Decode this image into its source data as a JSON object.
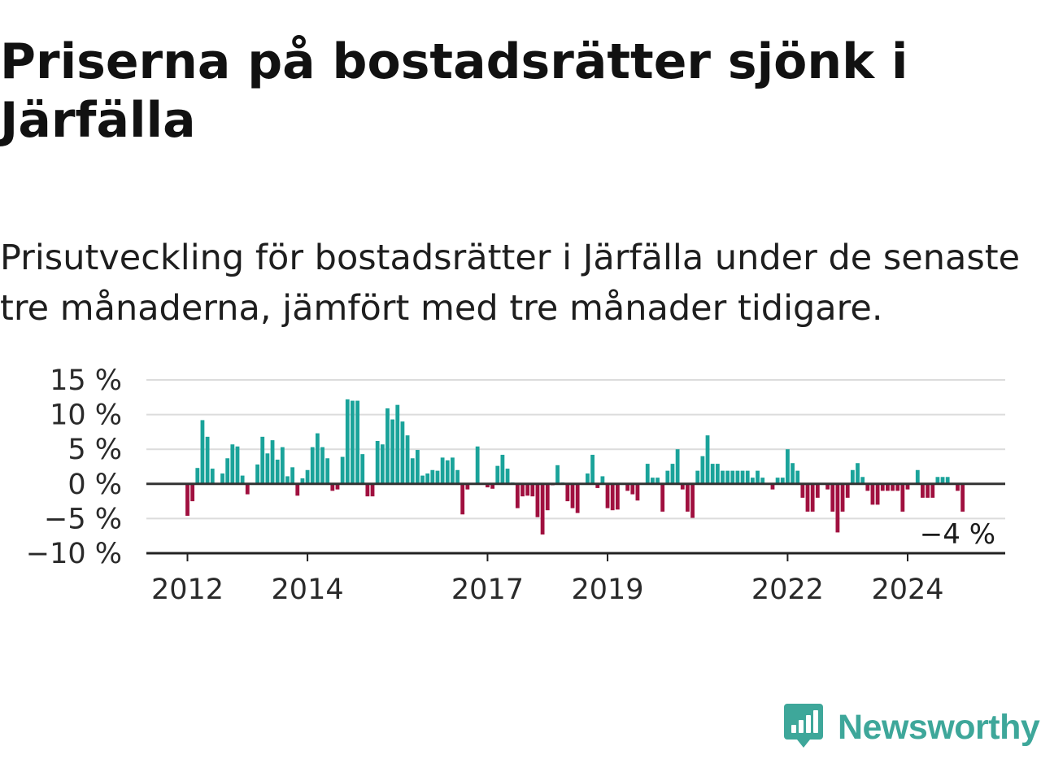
{
  "title": "Priserna på bostadsrätter sjönk i Järfälla",
  "subtitle": "Prisutveckling för bostadsrätter i Järfälla under de senaste tre månaderna, jämfört med tre månader tidigare.",
  "brand": {
    "name": "Newsworthy",
    "icon": "newsworthy-logo-icon",
    "color": "#3ea79a"
  },
  "colors": {
    "positive": "#1aa39a",
    "negative": "#a0103f",
    "grid": "#dcdcdc",
    "zero_line": "#333333"
  },
  "chart_data": {
    "type": "bar",
    "title": "Priserna på bostadsrätter sjönk i Järfälla",
    "xlabel": "",
    "ylabel": "",
    "ylim": [
      -10,
      15
    ],
    "y_ticks": [
      "15 %",
      "10 %",
      "5 %",
      "0 %",
      "−5 %",
      "−10 %"
    ],
    "y_tick_values": [
      15,
      10,
      5,
      0,
      -5,
      -10
    ],
    "x_ticks": [
      "2012",
      "2014",
      "2017",
      "2019",
      "2022",
      "2024"
    ],
    "grid": true,
    "start": "2012-01",
    "end_label": "−4 %",
    "series": [
      {
        "values": [
          -4.6,
          -2.5,
          2.3,
          9.2,
          6.8,
          2.2,
          0,
          1.5,
          3.7,
          5.7,
          5.4,
          1.2,
          -1.5,
          0,
          2.8,
          6.8,
          4.4,
          6.3,
          3.5,
          5.3,
          1.1,
          2.4,
          -1.7,
          0.8,
          2.0,
          5.3,
          7.3,
          5.3,
          3.7,
          -1.0,
          -0.8,
          3.9,
          12.2,
          12.0,
          12.0,
          4.3,
          -1.8,
          -1.8,
          6.2,
          5.7,
          10.9,
          9.3,
          11.4,
          9.0,
          7.0,
          3.7,
          4.9,
          1.2,
          1.5,
          2.0,
          1.9,
          3.8,
          3.4,
          3.8,
          2.0,
          -4.4,
          -0.8,
          0,
          5.4,
          0,
          -0.5,
          -0.7,
          2.6,
          4.2,
          2.2,
          0.2,
          -3.5,
          -1.8,
          -1.7,
          -1.8,
          -4.8,
          -7.3,
          -3.8,
          -0.2,
          2.7,
          0.2,
          -2.5,
          -3.5,
          -4.2,
          0,
          1.5,
          4.2,
          -0.6,
          1.1,
          -3.5,
          -3.8,
          -3.7,
          0,
          -1.0,
          -1.5,
          -2.4,
          0,
          2.9,
          0.9,
          0.9,
          -4.0,
          1.9,
          2.9,
          5.0,
          -0.8,
          -4.0,
          -4.9,
          1.9,
          4.0,
          7.0,
          2.9,
          2.9,
          1.9,
          1.9,
          1.9,
          1.9,
          1.9,
          1.9,
          0.9,
          1.9,
          0.9,
          0,
          -0.8,
          0.9,
          0.9,
          5.0,
          3.0,
          1.9,
          -2.0,
          -4.0,
          -4.0,
          -2.0,
          0,
          -0.8,
          -4.0,
          -7.0,
          -4.0,
          -2.0,
          2.0,
          3.0,
          1.0,
          -1.0,
          -3.0,
          -3.0,
          -1.0,
          -1.0,
          -1.0,
          -1.0,
          -4.0,
          -0.8,
          0,
          2.0,
          -2.0,
          -2.0,
          -2.0,
          1.0,
          1.0,
          1.0,
          0,
          -1.0,
          -4.0
        ]
      }
    ]
  }
}
